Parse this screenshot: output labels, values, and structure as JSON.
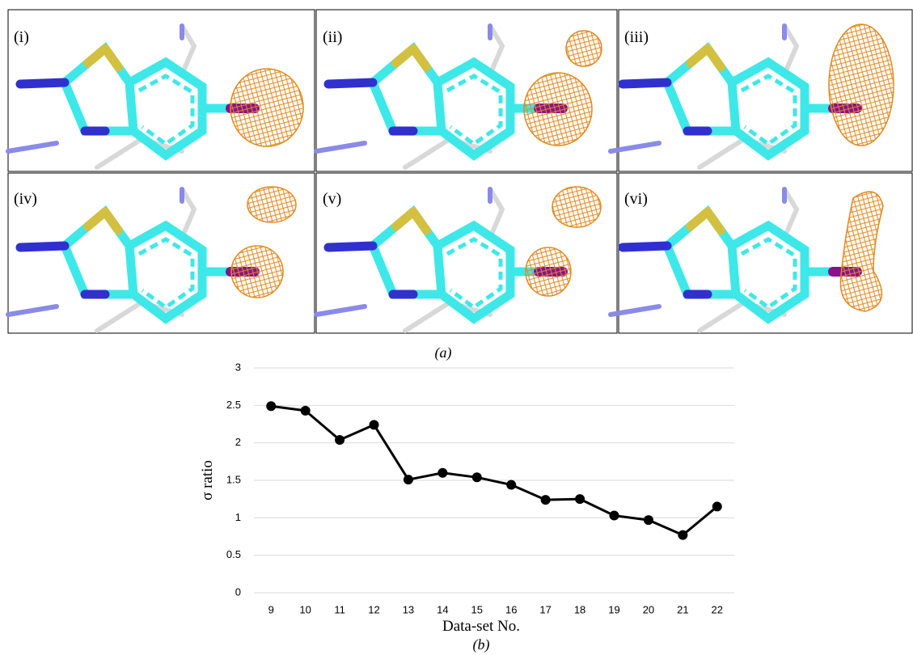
{
  "figure": {
    "panel_labels": [
      "(i)",
      "(ii)",
      "(iii)",
      "(iv)",
      "(v)",
      "(vi)"
    ],
    "caption": "(a)"
  },
  "chart_data": {
    "type": "line",
    "caption": "(b)",
    "x_label": "Data-set No.",
    "y_label": "σ ratio",
    "categories": [
      "9",
      "10",
      "11",
      "12",
      "13",
      "14",
      "15",
      "16",
      "17",
      "18",
      "19",
      "20",
      "21",
      "22"
    ],
    "values": [
      2.49,
      2.43,
      2.04,
      2.24,
      1.51,
      1.6,
      1.54,
      1.44,
      1.24,
      1.25,
      1.03,
      0.97,
      0.77,
      1.15
    ],
    "color": "#000000",
    "ylim": [
      0,
      3
    ],
    "yticks": [
      0,
      0.5,
      1,
      1.5,
      2,
      2.5,
      3
    ],
    "grid": true
  }
}
